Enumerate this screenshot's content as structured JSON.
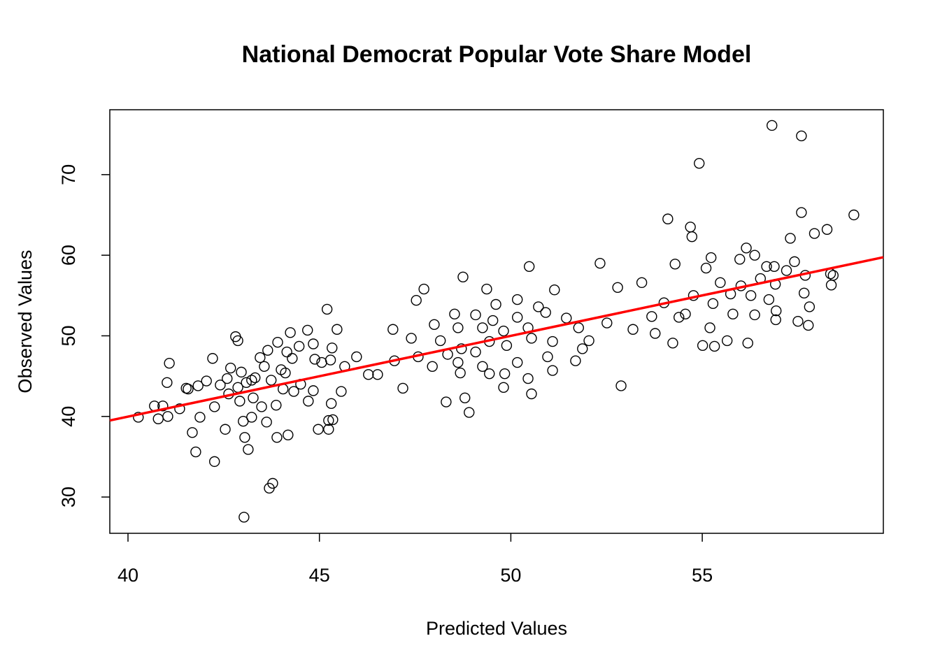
{
  "chart_data": {
    "type": "scatter",
    "title": "National Democrat Popular Vote Share Model",
    "x_label": "Predicted Values",
    "y_label": "Observed Values",
    "xlim": [
      39.525,
      59.73
    ],
    "ylim": [
      25.5,
      78.05
    ],
    "xticks": [
      40,
      45,
      50,
      55
    ],
    "yticks": [
      30,
      40,
      50,
      60,
      70
    ],
    "point_color": "#000000",
    "x": [
      56.82,
      57.59,
      54.92,
      58.96,
      57.59,
      54.1,
      58.26,
      54.69,
      57.93,
      54.73,
      57.3,
      52.33,
      54.29,
      56.15,
      56.37,
      55.1,
      55.23,
      50.48,
      48.75,
      47.73,
      49.37,
      51.14,
      47.53,
      52.79,
      53.42,
      55.98,
      56.68,
      56.88,
      57.41,
      58.35,
      58.42,
      58.37,
      57.8,
      57.77,
      57.5,
      56.93,
      56.92,
      56.19,
      55.65,
      55.32,
      55.01,
      54.23,
      53.19,
      52.88,
      52.51,
      53.77,
      53.68,
      54.39,
      54.0,
      54.77,
      55.74,
      56.27,
      56.74,
      55.28,
      56.01,
      55.47,
      56.91,
      56.37,
      55.8,
      55.2,
      54.56,
      57.66,
      57.69,
      57.2,
      56.52,
      46.92,
      47.18,
      46.96,
      47.58,
      48.16,
      47.95,
      48.31,
      48.68,
      48.91,
      48.8,
      49.44,
      49.81,
      50.54,
      50.45,
      49.84,
      50.17,
      51.09,
      50.96,
      51.69,
      51.87,
      52.04,
      51.77,
      51.45,
      50.72,
      50.17,
      49.61,
      49.08,
      48.53,
      49.26,
      49.81,
      50.45,
      49.44,
      48.71,
      48.35,
      49.08,
      49.89,
      50.54,
      51.09,
      49.53,
      50.17,
      50.91,
      48.62,
      49.26,
      48.0,
      48.62,
      47.4,
      46.52,
      46.28,
      40.27,
      40.69,
      40.79,
      41.04,
      40.91,
      41.02,
      41.08,
      41.68,
      41.77,
      42.26,
      41.57,
      41.88,
      42.21,
      42.26,
      42.54,
      42.81,
      42.87,
      43.03,
      43.05,
      43.14,
      43.01,
      43.69,
      43.78,
      43.89,
      44.18,
      44.24,
      44.69,
      45.2,
      45.46,
      44.97,
      45.24,
      45.35,
      45.24,
      45.31,
      45.57,
      45.97,
      45.66,
      45.33,
      45.29,
      44.71,
      44.33,
      43.87,
      43.49,
      43.23,
      42.63,
      42.41,
      42.05,
      41.83,
      41.52,
      42.68,
      42.96,
      43.09,
      43.32,
      43.45,
      43.65,
      43.91,
      44.0,
      44.11,
      44.29,
      44.47,
      44.84,
      44.88,
      45.06,
      44.84,
      44.51,
      44.05,
      43.74,
      43.56,
      43.23,
      42.87,
      42.92,
      42.59,
      43.62,
      43.27,
      44.15,
      41.35
    ],
    "y": [
      76.1,
      74.8,
      71.4,
      65.0,
      65.3,
      64.5,
      63.2,
      63.5,
      62.7,
      62.3,
      62.1,
      59.0,
      58.9,
      60.9,
      60.0,
      58.4,
      59.7,
      58.6,
      57.3,
      55.8,
      55.8,
      55.7,
      54.4,
      56.0,
      56.6,
      59.5,
      58.6,
      58.6,
      59.2,
      57.7,
      57.5,
      56.3,
      53.6,
      51.3,
      51.8,
      53.1,
      52.0,
      49.1,
      49.4,
      48.7,
      48.8,
      49.1,
      50.8,
      43.8,
      51.6,
      50.3,
      52.4,
      52.3,
      54.1,
      55.0,
      55.2,
      55.0,
      54.5,
      54.0,
      56.2,
      56.6,
      56.4,
      52.6,
      52.7,
      51.0,
      52.7,
      55.3,
      57.5,
      58.1,
      57.1,
      50.8,
      43.5,
      46.9,
      47.4,
      49.4,
      46.2,
      41.8,
      45.4,
      40.5,
      42.3,
      45.3,
      43.6,
      42.8,
      44.7,
      45.3,
      46.7,
      45.7,
      47.4,
      46.9,
      48.4,
      49.4,
      51.0,
      52.2,
      53.6,
      54.5,
      53.9,
      52.6,
      52.7,
      51.0,
      50.6,
      51.0,
      49.3,
      48.4,
      47.7,
      48.0,
      48.8,
      49.7,
      49.3,
      51.9,
      52.3,
      52.9,
      46.7,
      46.2,
      51.4,
      51.0,
      49.7,
      45.2,
      45.2,
      39.9,
      41.3,
      39.7,
      40.0,
      41.3,
      44.2,
      46.6,
      38.0,
      35.6,
      34.4,
      43.4,
      39.9,
      47.2,
      41.2,
      38.4,
      49.9,
      49.4,
      27.5,
      37.4,
      35.9,
      39.4,
      31.1,
      31.7,
      37.4,
      37.7,
      50.4,
      50.7,
      53.3,
      50.8,
      38.4,
      38.4,
      39.6,
      39.5,
      41.6,
      43.1,
      47.4,
      46.2,
      48.5,
      47.0,
      41.9,
      43.1,
      41.4,
      41.2,
      39.9,
      42.8,
      43.9,
      44.4,
      43.8,
      43.5,
      46.0,
      45.5,
      44.2,
      44.8,
      47.3,
      48.2,
      49.2,
      45.8,
      45.4,
      47.2,
      48.7,
      49.0,
      47.1,
      46.7,
      43.2,
      44.0,
      43.4,
      44.5,
      46.2,
      44.5,
      43.6,
      41.9,
      44.7,
      39.3,
      42.3,
      48.0,
      40.95
    ],
    "fit_line": {
      "x": [
        39.525,
        59.73
      ],
      "y": [
        39.5,
        59.75
      ],
      "color": "#ff0000"
    }
  }
}
